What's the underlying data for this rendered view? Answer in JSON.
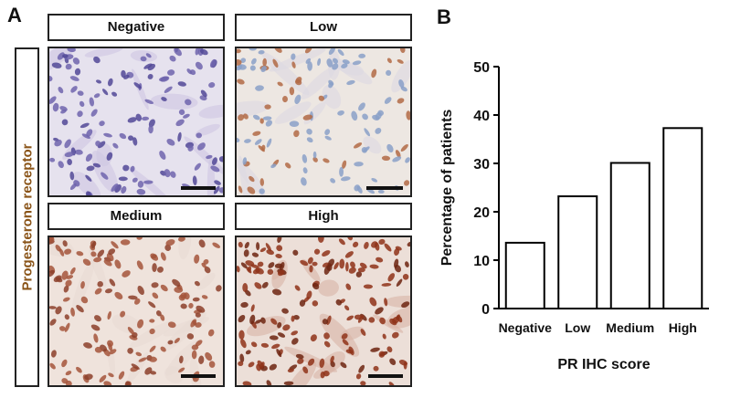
{
  "panel_a": {
    "letter": "A",
    "side_label": "Progesterone receptor",
    "side_label_color": "#8a5418",
    "panels": [
      {
        "title": "Negative",
        "background": "#e6e2ee",
        "nucleus_color": "#6f64ad",
        "nucleus_alt": "#514897",
        "stroma_color": "#cfc7e3",
        "nuclei": 130,
        "seed": 3
      },
      {
        "title": "Low",
        "background": "#ede7e2",
        "nucleus_color": "#8aa0c8",
        "nucleus_alt": "#b16a45",
        "stroma_color": "#dcd8e2",
        "nuclei": 120,
        "seed": 7
      },
      {
        "title": "Medium",
        "background": "#efe3dc",
        "nucleus_color": "#a4553b",
        "nucleus_alt": "#8c3f2a",
        "stroma_color": "#e8dbd4",
        "nuclei": 150,
        "seed": 11
      },
      {
        "title": "High",
        "background": "#ecdfd8",
        "nucleus_color": "#8f3219",
        "nucleus_alt": "#6d2410",
        "stroma_color": "#d9b4a6",
        "nuclei": 170,
        "seed": 19
      }
    ]
  },
  "panel_b": {
    "letter": "B"
  },
  "chart_data": {
    "type": "bar",
    "categories": [
      "Negative",
      "Low",
      "Medium",
      "High"
    ],
    "values": [
      13.6,
      23.2,
      30.1,
      37.3
    ],
    "xlabel": "PR IHC score",
    "ylabel": "Percentage of patients",
    "ylim": [
      0,
      50
    ],
    "yticks": [
      0,
      10,
      20,
      30,
      40,
      50
    ],
    "bar_fill": "#ffffff",
    "bar_stroke": "#000000",
    "grid": false
  }
}
